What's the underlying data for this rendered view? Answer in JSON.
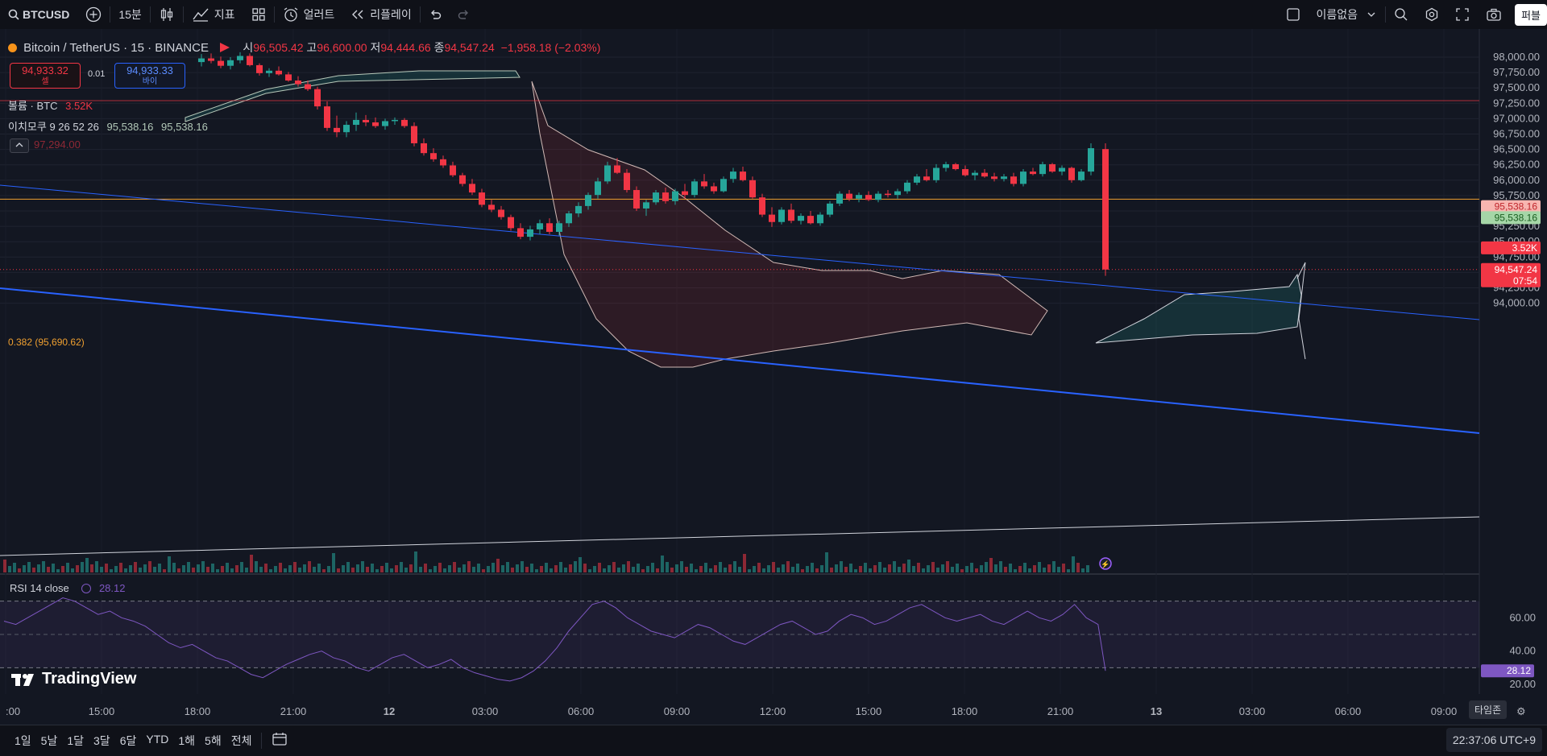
{
  "toolbar": {
    "symbol": "BTCUSD",
    "interval": "15분",
    "indicators_label": "지표",
    "alert_label": "얼러트",
    "replay_label": "리플레이",
    "layout_name": "이름없음",
    "publish_label": "퍼블"
  },
  "legend": {
    "symbol_title": "Bitcoin / TetherUS · 15 · BINANCE",
    "open_key": "시",
    "open": "96,505.42",
    "high_key": "고",
    "high": "96,600.00",
    "low_key": "저",
    "low": "94,444.66",
    "close_key": "종",
    "close": "94,547.24",
    "change": "−1,958.18 (−2.03%)"
  },
  "trade": {
    "sell_price": "94,933.32",
    "sell_label": "셀",
    "spread": "0.01",
    "buy_price": "94,933.33",
    "buy_label": "바이"
  },
  "indicators": {
    "volume_label": "볼륨 · BTC",
    "volume_value": "3.52K",
    "ichimoku_label": "이치모쿠 9 26 52 26",
    "ichimoku_v1": "95,538.16",
    "ichimoku_v2": "95,538.16",
    "hidden_value": "97,294.00"
  },
  "fib": {
    "label": "0.382 (95,690.62)"
  },
  "rsi": {
    "label": "RSI 14 close",
    "value": "28.12"
  },
  "price_axis": [
    "98,000.00",
    "97,750.00",
    "97,500.00",
    "97,250.00",
    "97,000.00",
    "96,750.00",
    "96,500.00",
    "96,250.00",
    "96,000.00",
    "95,750.00",
    "95,250.00",
    "95,000.00",
    "94,750.00",
    "94,250.00",
    "94,000.00"
  ],
  "price_tags": {
    "ichimoku_a": "95,538.16",
    "ichimoku_b": "95,538.16",
    "volume": "3.52K",
    "last": "94,547.24",
    "countdown": "07:54"
  },
  "rsi_axis": [
    "60.00",
    "40.00",
    "20.00"
  ],
  "rsi_tag": "28.12",
  "time_axis": [
    ":00",
    "15:00",
    "18:00",
    "21:00",
    "12",
    "03:00",
    "06:00",
    "09:00",
    "12:00",
    "15:00",
    "18:00",
    "21:00",
    "13",
    "03:00",
    "06:00",
    "09:00"
  ],
  "ranges": [
    "1일",
    "5날",
    "1달",
    "3달",
    "6달",
    "YTD",
    "1해",
    "5해",
    "전체"
  ],
  "brand": "TradingView",
  "timezone_badge": "타임존",
  "clock": "22:37:06 UTC+9",
  "colors": {
    "up": "#26a69a",
    "down": "#f23645",
    "trend": "#2962ff",
    "fib": "#f0a030",
    "rsi": "#7e57c2",
    "background": "#131722"
  }
}
